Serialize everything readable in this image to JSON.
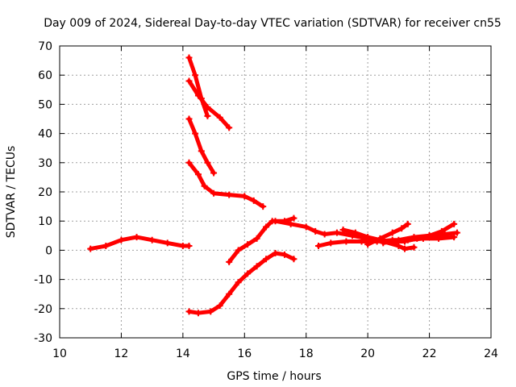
{
  "chart_data": {
    "type": "scatter",
    "title": "Day 009 of 2024, Sidereal Day-to-day VTEC variation (SDTVAR) for receiver cn55",
    "xlabel": "GPS time / hours",
    "ylabel": "SDTVAR / TECUs",
    "xlim": [
      10,
      24
    ],
    "ylim": [
      -30,
      70
    ],
    "xticks": [
      10,
      12,
      14,
      16,
      18,
      20,
      22,
      24
    ],
    "yticks": [
      -30,
      -20,
      -10,
      0,
      10,
      20,
      30,
      40,
      50,
      60,
      70
    ],
    "grid": true,
    "marker": "+",
    "color": "#ff0000",
    "series": [
      {
        "name": "track-1",
        "points": [
          [
            11.0,
            0.5
          ],
          [
            11.5,
            1.5
          ],
          [
            12.0,
            3.5
          ],
          [
            12.5,
            4.5
          ],
          [
            13.0,
            3.5
          ],
          [
            13.5,
            2.5
          ],
          [
            14.0,
            1.5
          ],
          [
            14.2,
            1.5
          ]
        ]
      },
      {
        "name": "track-2",
        "points": [
          [
            14.2,
            66
          ],
          [
            14.4,
            60
          ],
          [
            14.6,
            52
          ],
          [
            14.8,
            46
          ]
        ]
      },
      {
        "name": "track-3",
        "points": [
          [
            14.2,
            58
          ],
          [
            14.5,
            53
          ],
          [
            14.8,
            49
          ],
          [
            15.2,
            45.5
          ],
          [
            15.5,
            42
          ]
        ]
      },
      {
        "name": "track-4",
        "points": [
          [
            14.2,
            45
          ],
          [
            14.4,
            40
          ],
          [
            14.6,
            34
          ],
          [
            14.8,
            30
          ],
          [
            15.0,
            26.5
          ]
        ]
      },
      {
        "name": "track-5",
        "points": [
          [
            14.2,
            30
          ],
          [
            14.5,
            26
          ],
          [
            14.7,
            22
          ],
          [
            15.0,
            19.5
          ],
          [
            15.5,
            19
          ],
          [
            16.0,
            18.5
          ],
          [
            16.3,
            17
          ],
          [
            16.6,
            15
          ]
        ]
      },
      {
        "name": "track-6",
        "points": [
          [
            14.2,
            -21
          ],
          [
            14.5,
            -21.5
          ],
          [
            14.9,
            -21
          ],
          [
            15.2,
            -19
          ],
          [
            15.5,
            -15
          ],
          [
            15.8,
            -11
          ],
          [
            16.1,
            -8
          ],
          [
            16.4,
            -5.5
          ],
          [
            16.7,
            -3
          ],
          [
            17.0,
            -1
          ],
          [
            17.3,
            -1.5
          ],
          [
            17.6,
            -3
          ]
        ]
      },
      {
        "name": "track-7",
        "points": [
          [
            15.5,
            -4
          ],
          [
            15.8,
            0
          ],
          [
            16.1,
            2
          ],
          [
            16.4,
            4
          ],
          [
            16.7,
            8
          ],
          [
            16.9,
            10
          ],
          [
            17.3,
            10
          ],
          [
            17.6,
            11
          ]
        ]
      },
      {
        "name": "track-8",
        "points": [
          [
            17.0,
            10
          ],
          [
            17.5,
            9
          ],
          [
            18.0,
            8
          ],
          [
            18.3,
            6.5
          ],
          [
            18.6,
            5.5
          ],
          [
            19.0,
            6
          ],
          [
            19.5,
            5
          ],
          [
            20.0,
            4
          ],
          [
            20.5,
            3
          ],
          [
            21.0,
            1.5
          ],
          [
            21.2,
            0.5
          ],
          [
            21.5,
            1
          ]
        ]
      },
      {
        "name": "track-9",
        "points": [
          [
            18.4,
            1.5
          ],
          [
            18.8,
            2.5
          ],
          [
            19.3,
            3
          ],
          [
            19.8,
            3
          ],
          [
            20.3,
            3
          ],
          [
            20.8,
            3.5
          ],
          [
            21.3,
            3.5
          ],
          [
            21.8,
            4
          ],
          [
            22.3,
            4
          ],
          [
            22.8,
            4.5
          ]
        ]
      },
      {
        "name": "track-10",
        "points": [
          [
            19.2,
            7
          ],
          [
            19.6,
            6
          ],
          [
            20.0,
            4.5
          ],
          [
            20.4,
            3.5
          ],
          [
            20.8,
            3
          ],
          [
            21.2,
            3
          ],
          [
            21.6,
            4
          ],
          [
            22.0,
            5
          ],
          [
            22.4,
            6.5
          ],
          [
            22.8,
            9
          ]
        ]
      },
      {
        "name": "track-11",
        "points": [
          [
            20.0,
            2
          ],
          [
            20.4,
            4
          ],
          [
            20.8,
            6
          ],
          [
            21.1,
            7.5
          ],
          [
            21.3,
            9
          ]
        ]
      },
      {
        "name": "track-12",
        "points": [
          [
            20.5,
            2.5
          ],
          [
            21.0,
            3.5
          ],
          [
            21.5,
            4.5
          ],
          [
            22.0,
            5
          ],
          [
            22.5,
            5.5
          ],
          [
            22.9,
            6
          ]
        ]
      }
    ]
  }
}
